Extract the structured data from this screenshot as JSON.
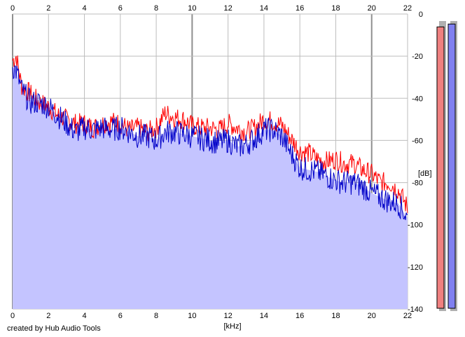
{
  "credit": "created by Hub Audio Tools",
  "colors": {
    "background": "#ffffff",
    "fill": "#c4c4ff",
    "grid": "#bdbdbd",
    "grid_major": "#8f8f8f",
    "left_channel": "#ff0000",
    "right_channel": "#0000c8",
    "meter_left": "#f08080",
    "meter_right": "#8080f0"
  },
  "chart_data": {
    "type": "line",
    "title": "",
    "xlabel": "[kHz]",
    "ylabel": "[dB]",
    "xlim": [
      0,
      22
    ],
    "ylim": [
      -140,
      0
    ],
    "x_ticks": [
      0,
      2,
      4,
      6,
      8,
      10,
      12,
      14,
      16,
      18,
      20,
      22
    ],
    "y_ticks": [
      0,
      -20,
      -40,
      -60,
      -80,
      -100,
      -120,
      -140
    ],
    "grid": true,
    "x": [
      0,
      0.2,
      0.5,
      1,
      1.5,
      2,
      2.5,
      3,
      3.5,
      4,
      4.5,
      5,
      5.5,
      6,
      6.5,
      7,
      7.5,
      8,
      8.5,
      9,
      9.5,
      10,
      10.5,
      11,
      11.5,
      12,
      12.5,
      13,
      13.5,
      14,
      14.5,
      15,
      15.5,
      16,
      16.5,
      17,
      17.5,
      18,
      18.5,
      19,
      19.5,
      20,
      20.5,
      21,
      21.5,
      22
    ],
    "series": [
      {
        "color": "#ff0000",
        "values": [
          -22,
          -20,
          -34,
          -38,
          -42,
          -44,
          -48,
          -50,
          -52,
          -52,
          -54,
          -52,
          -51,
          -52,
          -55,
          -54,
          -56,
          -54,
          -47,
          -49,
          -50,
          -53,
          -54,
          -54,
          -55,
          -52,
          -54,
          -56,
          -54,
          -50,
          -51,
          -53,
          -59,
          -65,
          -66,
          -69,
          -70,
          -69,
          -71,
          -71,
          -74,
          -76,
          -80,
          -80,
          -84,
          -92
        ]
      },
      {
        "color": "#0000c8",
        "values": [
          -25,
          -27,
          -36,
          -42,
          -42,
          -44,
          -48,
          -52,
          -56,
          -54,
          -55,
          -54,
          -55,
          -54,
          -56,
          -58,
          -58,
          -60,
          -56,
          -56,
          -57,
          -58,
          -59,
          -60,
          -61,
          -60,
          -63,
          -62,
          -59,
          -55,
          -55,
          -58,
          -66,
          -73,
          -74,
          -75,
          -77,
          -79,
          -80,
          -80,
          -82,
          -85,
          -87,
          -89,
          -90,
          -97
        ]
      }
    ]
  },
  "meters": {
    "left_level": 0.97,
    "right_level": 0.98
  }
}
